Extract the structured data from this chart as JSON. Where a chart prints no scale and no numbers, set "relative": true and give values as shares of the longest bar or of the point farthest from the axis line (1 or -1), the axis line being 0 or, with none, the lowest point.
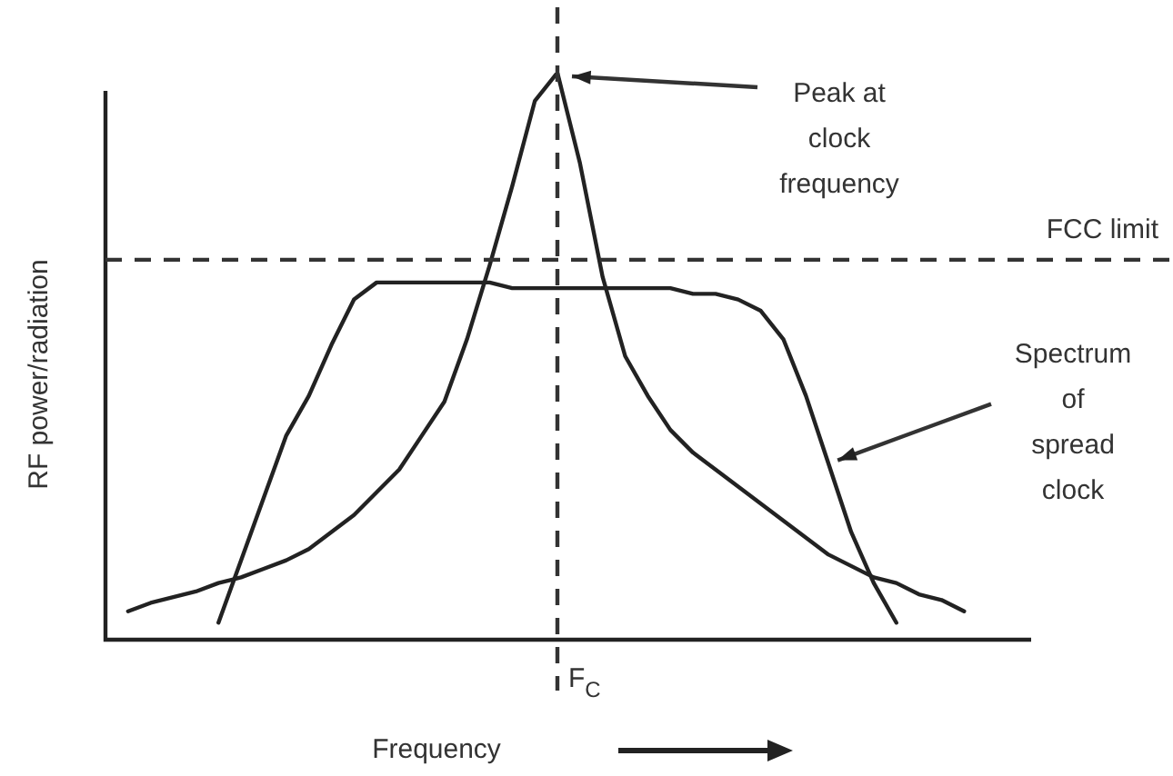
{
  "chart_data": {
    "type": "line",
    "relative": true,
    "xlabel": "Frequency",
    "ylabel": "RF power/radiation",
    "marker": "none",
    "line_style": "solid",
    "categories": [
      null,
      null,
      null,
      null,
      null,
      null,
      null,
      null,
      null,
      null,
      null,
      null,
      null,
      null,
      null,
      null,
      null,
      null,
      null,
      null,
      null,
      null,
      null,
      null,
      null,
      null,
      null,
      null,
      null,
      null,
      null,
      null,
      null,
      null,
      null,
      null,
      null,
      null,
      null,
      null,
      null
    ],
    "series": [
      {
        "color": "#222222",
        "values": [
          null,
          0.05,
          0.065,
          0.075,
          0.085,
          0.1,
          0.11,
          0.125,
          0.14,
          0.16,
          0.19,
          0.22,
          0.26,
          0.3,
          0.36,
          0.42,
          0.53,
          0.66,
          0.8,
          0.95,
          1,
          0.84,
          0.64,
          0.5,
          0.43,
          0.37,
          0.33,
          0.3,
          0.27,
          0.24,
          0.21,
          0.18,
          0.15,
          0.13,
          0.11,
          0.1,
          0.08,
          0.07,
          0.05,
          null,
          null
        ]
      },
      {
        "color": "#222222",
        "values": [
          null,
          null,
          null,
          null,
          null,
          0.03,
          0.14,
          0.25,
          0.36,
          0.43,
          0.52,
          0.6,
          0.63,
          0.63,
          0.63,
          0.63,
          0.63,
          0.63,
          0.62,
          0.62,
          0.62,
          0.62,
          0.62,
          0.62,
          0.62,
          0.62,
          0.61,
          0.61,
          0.6,
          0.58,
          0.53,
          0.43,
          0.31,
          0.19,
          0.1,
          0.03,
          null,
          null,
          null,
          null,
          null
        ]
      }
    ],
    "ref_lines": [
      {
        "axis": "y",
        "value": 0.67,
        "label": "FCC limit",
        "line_style": "dashed"
      }
    ],
    "annotations": [
      "Peak at\nclock\nfrequency",
      "Spectrum\nof\nspread\nclock",
      "F$_{C}$"
    ]
  }
}
